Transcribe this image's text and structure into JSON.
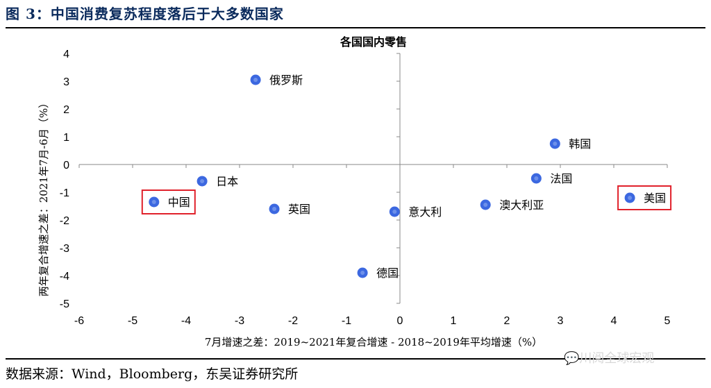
{
  "figure": {
    "title": "图 3：中国消费复苏程度落后于大多数国家",
    "source": "数据来源：Wind，Bloomberg，东吴证券研究所",
    "watermark": "川阅全球宏观"
  },
  "colors": {
    "point": "#3c68e0",
    "highlight": "#e0202a",
    "title": "#0a2a5c"
  },
  "chart_data": {
    "type": "scatter",
    "title": "各国国内零售",
    "xlabel": "7月增速之差：2019~2021年复合增速 - 2018~2019年平均增速（%）",
    "ylabel": "两年复合增速之差：2021年7月-6月（%）",
    "xlim": [
      -6,
      5
    ],
    "ylim": [
      -5,
      4
    ],
    "xticks": [
      "-6",
      "-5",
      "-4",
      "-3",
      "-2",
      "-1",
      "0",
      "1",
      "2",
      "3",
      "4",
      "5"
    ],
    "yticks": [
      "4",
      "3",
      "2",
      "1",
      "0",
      "-1",
      "-2",
      "-3",
      "-4",
      "-5"
    ],
    "grid": false,
    "points": [
      {
        "label": "俄罗斯",
        "x": -2.7,
        "y": 3.05,
        "highlight": false
      },
      {
        "label": "韩国",
        "x": 2.9,
        "y": 0.75,
        "highlight": false
      },
      {
        "label": "日本",
        "x": -3.7,
        "y": -0.6,
        "highlight": false
      },
      {
        "label": "法国",
        "x": 2.55,
        "y": -0.5,
        "highlight": false
      },
      {
        "label": "中国",
        "x": -4.6,
        "y": -1.35,
        "highlight": true
      },
      {
        "label": "美国",
        "x": 4.3,
        "y": -1.2,
        "highlight": true
      },
      {
        "label": "英国",
        "x": -2.35,
        "y": -1.6,
        "highlight": false
      },
      {
        "label": "意大利",
        "x": -0.1,
        "y": -1.7,
        "highlight": false
      },
      {
        "label": "澳大利亚",
        "x": 1.6,
        "y": -1.45,
        "highlight": false
      },
      {
        "label": "德国",
        "x": -0.7,
        "y": -3.9,
        "highlight": false
      }
    ]
  }
}
